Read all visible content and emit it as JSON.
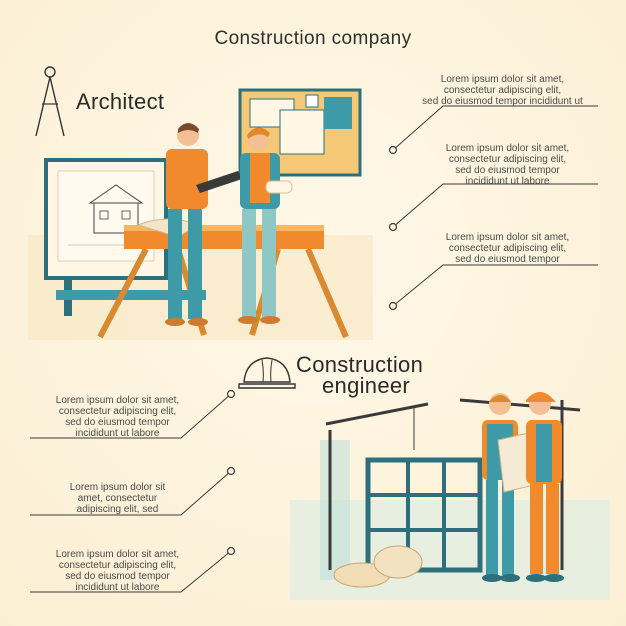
{
  "title": "Construction company",
  "architect": {
    "heading": "Architect",
    "texts": [
      [
        "Lorem ipsum dolor sit amet,",
        "consectetur adipiscing elit,",
        "sed do eiusmod tempor incididunt ut"
      ],
      [
        "Lorem ipsum dolor sit amet,",
        "consectetur adipiscing elit,",
        "sed do eiusmod tempor",
        "incididunt ut labore"
      ],
      [
        "Lorem ipsum dolor sit amet,",
        "consectetur adipiscing elit,",
        "sed do eiusmod tempor"
      ]
    ]
  },
  "engineer": {
    "heading_line1": "Construction",
    "heading_line2": "engineer",
    "texts": [
      [
        "Lorem ipsum dolor sit amet,",
        "consectetur adipiscing elit,",
        "sed do eiusmod tempor",
        "incididunt ut labore"
      ],
      [
        "Lorem ipsum dolor sit",
        "amet, consectetur",
        "adipiscing elit, sed"
      ],
      [
        "Lorem ipsum dolor sit amet,",
        "consectetur adipiscing elit,",
        "sed do eiusmod tempor",
        "incididunt ut labore"
      ]
    ]
  },
  "colors": {
    "background": "#fbefd3",
    "orange": "#f08a2c",
    "teal": "#3f9aa8",
    "line": "#3a3a3a"
  }
}
